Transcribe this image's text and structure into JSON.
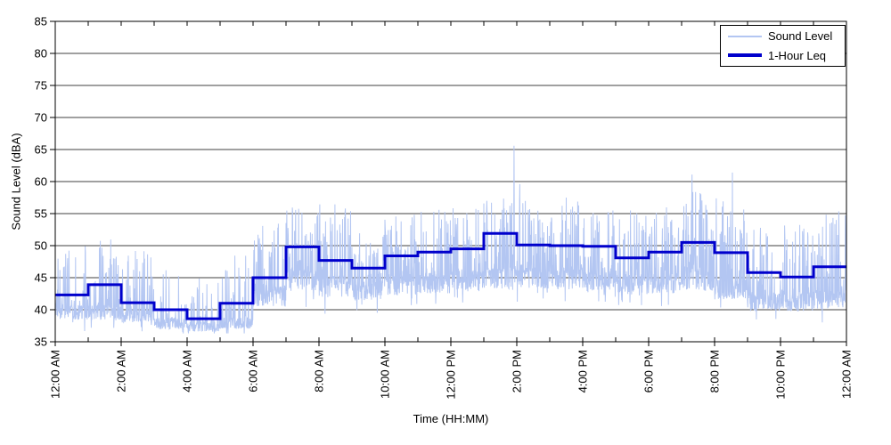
{
  "chart_data": {
    "type": "line",
    "title": "",
    "xlabel": "Time (HH:MM)",
    "ylabel": "Sound Level (dBA)",
    "ylim": [
      35,
      85
    ],
    "xlim_hours": [
      0,
      24
    ],
    "grid": "horizontal-only",
    "gridline_color": "#000000",
    "y_ticks": [
      35,
      40,
      45,
      50,
      55,
      60,
      65,
      70,
      75,
      80,
      85
    ],
    "x_major_tick_hours": [
      0,
      2,
      4,
      6,
      8,
      10,
      12,
      14,
      16,
      18,
      20,
      22,
      24
    ],
    "x_tick_labels": [
      "12:00 AM",
      "2:00 AM",
      "4:00 AM",
      "6:00 AM",
      "8:00 AM",
      "10:00 AM",
      "12:00 PM",
      "2:00 PM",
      "4:00 PM",
      "6:00 PM",
      "8:00 PM",
      "10:00 PM",
      "12:00 AM"
    ],
    "x_minor_tick_every_hours": 1,
    "legend": {
      "position": "top-right",
      "entries": [
        "Sound Level",
        "1-Hour Leq"
      ]
    },
    "series": [
      {
        "name": "Sound Level",
        "kind": "noisy-minute-data",
        "color": "#b3c6f2",
        "stroke_width": 1,
        "seed": 20,
        "points_per_hour": 120,
        "hourly_envelope": [
          {
            "hour": 0,
            "base": 39.5,
            "spread": 1.2,
            "spike_rate": 0.32,
            "spike_max": 50.5
          },
          {
            "hour": 1,
            "base": 39.5,
            "spread": 1.2,
            "spike_rate": 0.42,
            "spike_max": 51.0
          },
          {
            "hour": 2,
            "base": 39.0,
            "spread": 1.1,
            "spike_rate": 0.32,
            "spike_max": 49.5
          },
          {
            "hour": 3,
            "base": 37.8,
            "spread": 0.9,
            "spike_rate": 0.22,
            "spike_max": 46.5
          },
          {
            "hour": 4,
            "base": 37.3,
            "spread": 0.8,
            "spike_rate": 0.18,
            "spike_max": 45.0
          },
          {
            "hour": 5,
            "base": 37.8,
            "spread": 0.9,
            "spike_rate": 0.26,
            "spike_max": 49.0
          },
          {
            "hour": 6,
            "base": 42.0,
            "spread": 1.8,
            "spike_rate": 0.36,
            "spike_max": 54.0
          },
          {
            "hour": 7,
            "base": 44.5,
            "spread": 1.8,
            "spike_rate": 0.42,
            "spike_max": 57.0
          },
          {
            "hour": 8,
            "base": 43.5,
            "spread": 1.8,
            "spike_rate": 0.4,
            "spike_max": 57.0
          },
          {
            "hour": 9,
            "base": 42.8,
            "spread": 1.5,
            "spike_rate": 0.36,
            "spike_max": 53.0
          },
          {
            "hour": 10,
            "base": 43.5,
            "spread": 1.6,
            "spike_rate": 0.38,
            "spike_max": 55.0
          },
          {
            "hour": 11,
            "base": 44.0,
            "spread": 1.6,
            "spike_rate": 0.38,
            "spike_max": 56.0
          },
          {
            "hour": 12,
            "base": 44.3,
            "spread": 1.6,
            "spike_rate": 0.4,
            "spike_max": 56.0
          },
          {
            "hour": 13,
            "base": 44.8,
            "spread": 1.7,
            "spike_rate": 0.42,
            "spike_max": 58.0
          },
          {
            "hour": 14,
            "base": 44.8,
            "spread": 1.7,
            "spike_rate": 0.42,
            "spike_max": 57.5
          },
          {
            "hour": 15,
            "base": 44.8,
            "spread": 1.7,
            "spike_rate": 0.4,
            "spike_max": 57.0
          },
          {
            "hour": 16,
            "base": 44.3,
            "spread": 1.6,
            "spike_rate": 0.38,
            "spike_max": 56.0
          },
          {
            "hour": 17,
            "base": 43.8,
            "spread": 1.6,
            "spike_rate": 0.38,
            "spike_max": 55.5
          },
          {
            "hour": 18,
            "base": 44.0,
            "spread": 1.6,
            "spike_rate": 0.38,
            "spike_max": 56.0
          },
          {
            "hour": 19,
            "base": 44.5,
            "spread": 1.7,
            "spike_rate": 0.4,
            "spike_max": 59.0
          },
          {
            "hour": 20,
            "base": 43.0,
            "spread": 1.6,
            "spike_rate": 0.38,
            "spike_max": 58.0
          },
          {
            "hour": 21,
            "base": 41.0,
            "spread": 1.4,
            "spike_rate": 0.32,
            "spike_max": 53.0
          },
          {
            "hour": 22,
            "base": 41.0,
            "spread": 1.4,
            "spike_rate": 0.32,
            "spike_max": 53.5
          },
          {
            "hour": 23,
            "base": 41.5,
            "spread": 1.5,
            "spike_rate": 0.36,
            "spike_max": 55.5
          }
        ],
        "outlier_spikes": [
          {
            "t_hours": 13.92,
            "value": 65.6
          },
          {
            "t_hours": 14.09,
            "value": 59.6
          },
          {
            "t_hours": 15.5,
            "value": 57.5
          },
          {
            "t_hours": 19.32,
            "value": 61.1
          },
          {
            "t_hours": 20.54,
            "value": 61.4
          }
        ]
      },
      {
        "name": "1-Hour Leq",
        "kind": "step",
        "color": "#0000cc",
        "stroke_width": 3,
        "hourly_leq": [
          42.3,
          43.9,
          41.1,
          40.0,
          38.6,
          41.0,
          45.0,
          49.8,
          47.7,
          46.5,
          48.4,
          49.0,
          49.5,
          51.9,
          50.1,
          50.0,
          49.9,
          48.1,
          49.0,
          50.5,
          48.9,
          45.8,
          45.1,
          46.7
        ]
      }
    ]
  }
}
